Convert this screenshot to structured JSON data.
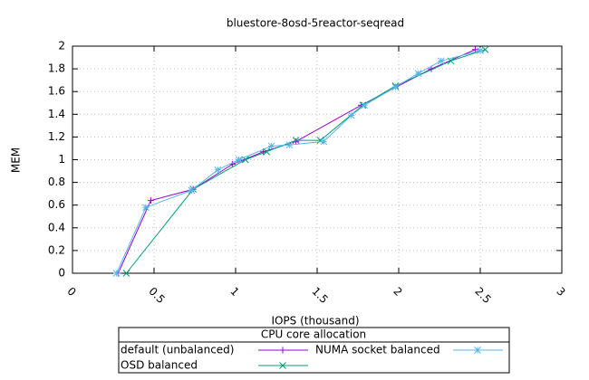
{
  "chart_data": {
    "type": "line",
    "title": "bluestore-8osd-5reactor-seqread",
    "x_label": "IOPS (thousand)",
    "y_label": "MEM",
    "xlim": [
      0,
      3
    ],
    "xticks": [
      0,
      0.5,
      1,
      1.5,
      2,
      2.5,
      3
    ],
    "ylim": [
      0,
      2
    ],
    "yticks": [
      0,
      0.2,
      0.4,
      0.6,
      0.8,
      1,
      1.2,
      1.4,
      1.6,
      1.8,
      2
    ],
    "grid": true,
    "legend_title": "CPU core allocation",
    "legend_position": "bottom",
    "series": [
      {
        "name": "default (unbalanced)",
        "color": "#9400d3",
        "marker": "+",
        "x": [
          0.28,
          0.48,
          0.74,
          0.98,
          1.17,
          1.37,
          1.77,
          2.2,
          2.47
        ],
        "values": [
          0,
          0.64,
          0.74,
          0.96,
          1.07,
          1.16,
          1.48,
          1.8,
          1.97
        ]
      },
      {
        "name": "OSD balanced",
        "color": "#009e73",
        "marker": "x",
        "x": [
          0.33,
          0.74,
          1.06,
          1.19,
          1.37,
          1.52,
          1.78,
          1.98,
          2.32,
          2.53
        ],
        "values": [
          0,
          0.74,
          1.0,
          1.07,
          1.17,
          1.17,
          1.48,
          1.65,
          1.87,
          1.97
        ]
      },
      {
        "name": "NUMA socket balanced",
        "color": "#56b4e9",
        "marker": "*",
        "x": [
          0.27,
          0.45,
          0.73,
          0.89,
          1.02,
          1.22,
          1.33,
          1.54,
          1.71,
          1.79,
          1.98,
          2.12,
          2.26,
          2.5
        ],
        "values": [
          0,
          0.58,
          0.73,
          0.91,
          1.0,
          1.12,
          1.13,
          1.16,
          1.39,
          1.48,
          1.64,
          1.76,
          1.87,
          1.96
        ]
      }
    ]
  }
}
